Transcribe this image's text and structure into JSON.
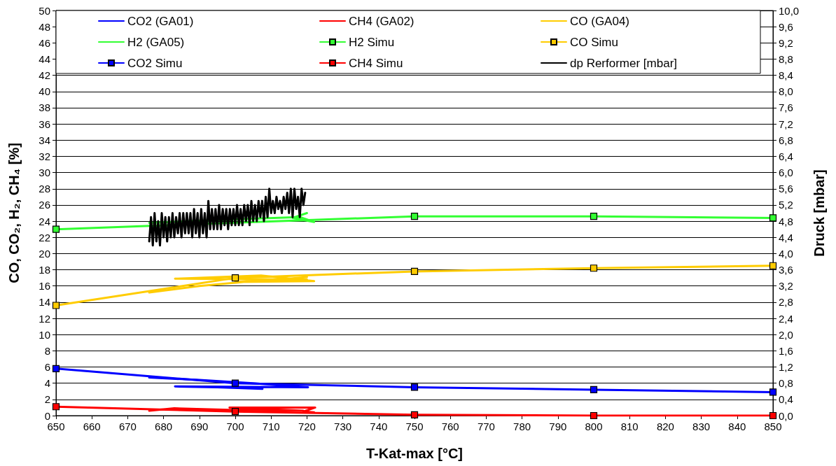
{
  "chart_data": {
    "type": "line",
    "xlabel": "T-Kat-max [°C]",
    "ylabel": "CO, CO₂, H₂, CH₄ [%]",
    "y2label": "Druck [mbar]",
    "xlim": [
      650,
      850
    ],
    "xticks": [
      650,
      660,
      670,
      680,
      690,
      700,
      710,
      720,
      730,
      740,
      750,
      760,
      770,
      780,
      790,
      800,
      810,
      820,
      830,
      840,
      850
    ],
    "ylim": [
      0,
      50
    ],
    "yticks": [
      0,
      2,
      4,
      6,
      8,
      10,
      12,
      14,
      16,
      18,
      20,
      22,
      24,
      26,
      28,
      30,
      32,
      34,
      36,
      38,
      40,
      42,
      44,
      46,
      48,
      50
    ],
    "y2lim": [
      0,
      10
    ],
    "y2ticks": [
      {
        "value": 0,
        "label": "0,0"
      },
      {
        "value": 0.4,
        "label": "0,4"
      },
      {
        "value": 0.8,
        "label": "0,8"
      },
      {
        "value": 1.2,
        "label": "1,2"
      },
      {
        "value": 1.6,
        "label": "1,6"
      },
      {
        "value": 2.0,
        "label": "2,0"
      },
      {
        "value": 2.4,
        "label": "2,4"
      },
      {
        "value": 2.8,
        "label": "2,8"
      },
      {
        "value": 3.2,
        "label": "3,2"
      },
      {
        "value": 3.6,
        "label": "3,6"
      },
      {
        "value": 4.0,
        "label": "4,0"
      },
      {
        "value": 4.4,
        "label": "4,4"
      },
      {
        "value": 4.8,
        "label": "4,8"
      },
      {
        "value": 5.2,
        "label": "5,2"
      },
      {
        "value": 5.6,
        "label": "5,6"
      },
      {
        "value": 6.0,
        "label": "6,0"
      },
      {
        "value": 6.4,
        "label": "6,4"
      },
      {
        "value": 6.8,
        "label": "6,8"
      },
      {
        "value": 7.2,
        "label": "7,2"
      },
      {
        "value": 7.6,
        "label": "7,6"
      },
      {
        "value": 8.0,
        "label": "8,0"
      },
      {
        "value": 8.4,
        "label": "8,4"
      },
      {
        "value": 8.8,
        "label": "8,8"
      },
      {
        "value": 9.2,
        "label": "9,2"
      },
      {
        "value": 9.6,
        "label": "9,6"
      },
      {
        "value": 10,
        "label": "10,0"
      }
    ],
    "grid": "y",
    "legend": "top",
    "line_style": "solid",
    "series": [
      {
        "name": "CO2 (GA01)",
        "color": "#0000ff",
        "marker": "none",
        "x": [
          676,
          690,
          705,
          720.3,
          683.2,
          695,
          707.6
        ],
        "values": [
          4.7,
          4.4,
          4.0,
          3.5,
          3.6,
          3.5,
          3.3
        ]
      },
      {
        "name": "CH4 (GA02)",
        "color": "#ff0000",
        "marker": "none",
        "x": [
          676,
          683,
          700,
          719,
          698.4,
          722.3,
          719,
          722
        ],
        "values": [
          0.6,
          0.9,
          0.7,
          0.6,
          1.0,
          1.0,
          0.5,
          0.4
        ]
      },
      {
        "name": "CO (GA04)",
        "color": "#ffcc00",
        "marker": "none",
        "x": [
          676,
          690,
          705,
          720,
          683.2,
          707.2,
          722,
          700,
          715,
          720
        ],
        "values": [
          15.2,
          16.0,
          16.6,
          16.8,
          16.9,
          17.3,
          16.6,
          16.5,
          16.9,
          17.1
        ]
      },
      {
        "name": "H2 (GA05)",
        "color": "#33ff33",
        "marker": "none",
        "x": [
          676,
          690,
          705,
          718,
          722,
          716,
          720
        ],
        "values": [
          23.8,
          null,
          24.3,
          24.5,
          23.9,
          24.4,
          25.0
        ]
      },
      {
        "name": "H2 Simu",
        "color": "#33ff33",
        "marker": "square",
        "x": [
          650,
          700,
          750,
          800,
          850
        ],
        "values": [
          23.0,
          null,
          24.6,
          24.6,
          24.4
        ]
      },
      {
        "name": "CO Simu",
        "color": "#ffcc00",
        "marker": "square",
        "x": [
          650,
          700,
          750,
          800,
          850
        ],
        "values": [
          13.6,
          17.0,
          17.8,
          18.2,
          18.5
        ]
      },
      {
        "name": "CO2 Simu",
        "color": "#0000ff",
        "marker": "square",
        "x": [
          650,
          700,
          750,
          800,
          850
        ],
        "values": [
          5.8,
          4.0,
          3.5,
          3.2,
          2.9
        ]
      },
      {
        "name": "CH4 Simu",
        "color": "#ff0000",
        "marker": "square",
        "x": [
          650,
          700,
          750,
          800,
          850
        ],
        "values": [
          1.1,
          0.5,
          0.1,
          0.0,
          0.0
        ]
      },
      {
        "name": "dp Rerformer [mbar]",
        "color": "#000000",
        "marker": "none",
        "axis": "y2",
        "x": [
          676,
          676.5,
          677,
          677.5,
          678,
          678.5,
          679,
          679.5,
          680,
          680.5,
          681,
          681.5,
          682,
          682.5,
          683,
          683.5,
          684,
          684.5,
          685,
          685.5,
          686,
          686.5,
          687,
          687.5,
          688,
          688.5,
          689,
          689.5,
          690,
          690.5,
          691,
          691.5,
          692,
          692.5,
          693,
          693.5,
          694,
          694.5,
          695,
          695.5,
          696,
          696.5,
          697,
          697.5,
          698,
          698.5,
          699,
          699.5,
          700,
          700.5,
          701,
          701.5,
          702,
          702.5,
          703,
          703.5,
          704,
          704.5,
          705,
          705.5,
          706,
          706.5,
          707,
          707.5,
          708,
          708.5,
          709,
          709.5,
          710,
          710.5,
          711,
          711.5,
          712,
          712.5,
          713,
          713.5,
          714,
          714.5,
          715,
          715.5,
          716,
          716.5,
          717,
          717.5,
          718,
          718.5,
          719,
          719.5
        ],
        "values": [
          4.3,
          4.9,
          4.2,
          5.0,
          4.3,
          4.8,
          4.2,
          5.0,
          4.4,
          4.9,
          4.3,
          4.9,
          4.4,
          5.0,
          4.4,
          4.9,
          4.5,
          5.0,
          4.4,
          5.0,
          4.5,
          5.0,
          4.5,
          5.0,
          4.4,
          5.1,
          4.5,
          5.0,
          4.4,
          5.1,
          4.5,
          5.0,
          4.4,
          5.3,
          4.6,
          5.1,
          4.6,
          5.1,
          4.6,
          5.2,
          4.6,
          5.1,
          4.7,
          5.1,
          4.6,
          5.1,
          4.7,
          5.1,
          4.7,
          5.2,
          4.7,
          5.1,
          4.7,
          5.2,
          4.8,
          5.2,
          4.7,
          5.3,
          4.8,
          5.2,
          4.8,
          5.3,
          4.9,
          5.3,
          4.8,
          5.4,
          4.9,
          5.6,
          5.0,
          5.3,
          5.0,
          5.4,
          5.1,
          5.3,
          5.0,
          5.4,
          5.1,
          5.5,
          5.0,
          5.6,
          4.9,
          5.6,
          5.1,
          5.4,
          4.9,
          5.6,
          5.2,
          5.5
        ]
      }
    ]
  }
}
